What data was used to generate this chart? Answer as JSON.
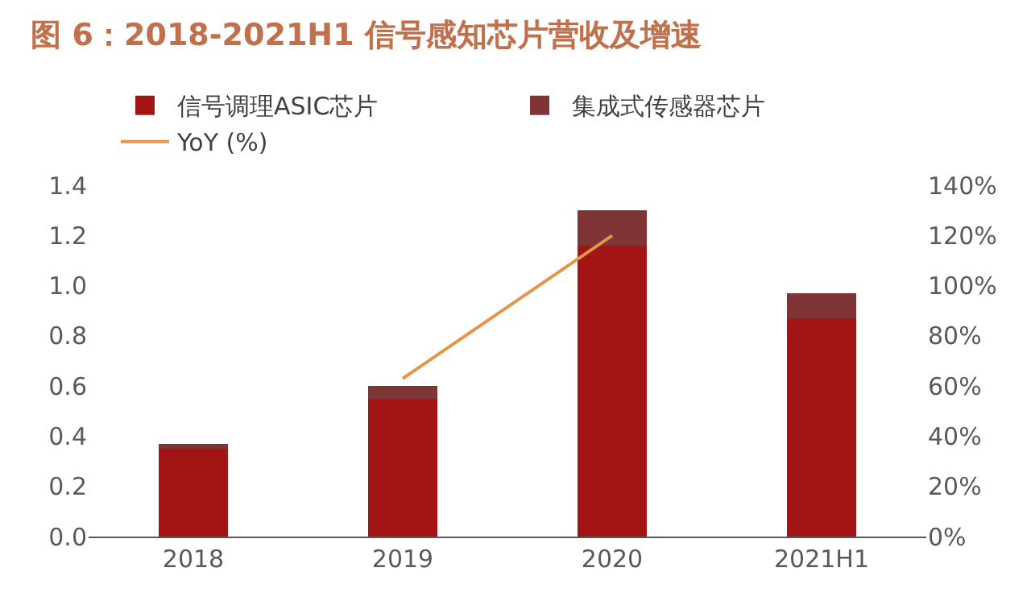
{
  "chart_data": {
    "type": "bar",
    "title": "图 6：2018-2021H1 信号感知芯片营收及增速",
    "stacked": true,
    "categories": [
      "2018",
      "2019",
      "2020",
      "2021H1"
    ],
    "series": [
      {
        "name": "信号调理ASIC芯片",
        "color": "#a31515",
        "values": [
          0.35,
          0.55,
          1.16,
          0.87
        ]
      },
      {
        "name": "集成式传感器芯片",
        "color": "#7f3535",
        "values": [
          0.02,
          0.05,
          0.14,
          0.1
        ]
      },
      {
        "name": "YoY (%)",
        "type": "line",
        "axis": "y2",
        "color": "#e3954a",
        "values": [
          null,
          63,
          120,
          null
        ]
      }
    ],
    "ylim": [
      0,
      1.4
    ],
    "yticks": [
      {
        "value": 0,
        "label": "0.0"
      },
      0.2,
      0.4,
      0.6,
      0.8,
      {
        "value": 1,
        "label": "1.0"
      },
      1.2,
      1.4
    ],
    "y2lim": [
      0,
      140
    ],
    "y2ticks": [
      {
        "value": 0,
        "label": "0%"
      },
      {
        "value": 20,
        "label": "20%"
      },
      {
        "value": 40,
        "label": "40%"
      },
      {
        "value": 60,
        "label": "60%"
      },
      {
        "value": 80,
        "label": "80%"
      },
      {
        "value": 100,
        "label": "100%"
      },
      {
        "value": 120,
        "label": "120%"
      },
      {
        "value": 140,
        "label": "140%"
      }
    ],
    "legend": "top",
    "marker": "none",
    "line_style": "solid"
  }
}
